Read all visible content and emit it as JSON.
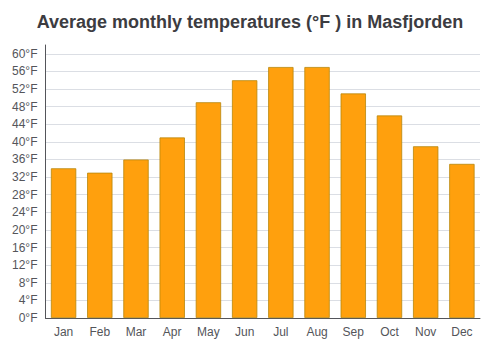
{
  "chart_data": {
    "type": "bar",
    "title": "Average monthly temperatures (°F ) in Masfjorden",
    "categories": [
      "Jan",
      "Feb",
      "Mar",
      "Apr",
      "May",
      "Jun",
      "Jul",
      "Aug",
      "Sep",
      "Oct",
      "Nov",
      "Dec"
    ],
    "values": [
      34,
      33,
      36,
      41,
      49,
      54,
      57,
      57,
      51,
      46,
      39,
      35
    ],
    "color": "#FFA00D",
    "ylim": [
      0,
      62
    ],
    "yticks": [
      {
        "value": 0,
        "label": "0°F"
      },
      {
        "value": 4,
        "label": "4°F"
      },
      {
        "value": 8,
        "label": "8°F"
      },
      {
        "value": 12,
        "label": "12°F"
      },
      {
        "value": 16,
        "label": "16°F"
      },
      {
        "value": 20,
        "label": "20°F"
      },
      {
        "value": 24,
        "label": "24°F"
      },
      {
        "value": 28,
        "label": "28°F"
      },
      {
        "value": 32,
        "label": "32°F"
      },
      {
        "value": 36,
        "label": "36°F"
      },
      {
        "value": 40,
        "label": "40°F"
      },
      {
        "value": 44,
        "label": "44°F"
      },
      {
        "value": 48,
        "label": "48°F"
      },
      {
        "value": 52,
        "label": "52°F"
      },
      {
        "value": 56,
        "label": "56°F"
      },
      {
        "value": 60,
        "label": "60°F"
      }
    ],
    "grid": true
  }
}
